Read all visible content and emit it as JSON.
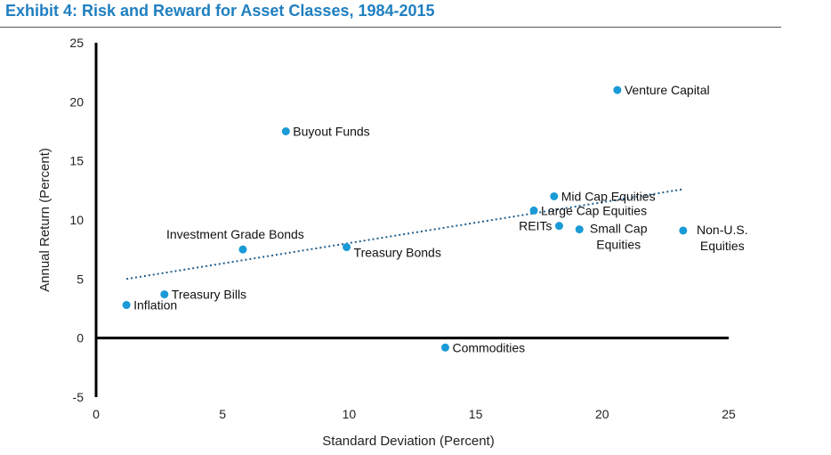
{
  "title": "Exhibit 4: Risk and Reward for Asset Classes, 1984-2015",
  "chart_data": {
    "type": "scatter",
    "title": "Exhibit 4: Risk and Reward for Asset Classes, 1984-2015",
    "xlabel": "Standard Deviation (Percent)",
    "ylabel": "Annual Return (Percent)",
    "xlim": [
      0,
      25
    ],
    "ylim": [
      -5,
      25
    ],
    "xticks": [
      0,
      5,
      10,
      15,
      20,
      25
    ],
    "yticks": [
      -5,
      0,
      5,
      10,
      15,
      20,
      25
    ],
    "grid": false,
    "legend": "none",
    "point_color": "#1a9ad6",
    "trend_color": "#1f5e8c",
    "trendline": {
      "x": [
        1.2,
        23.2
      ],
      "y": [
        5.0,
        12.6
      ]
    },
    "points": [
      {
        "label": [
          "Venture Capital"
        ],
        "x": 20.6,
        "y": 21.0,
        "anchor": "right"
      },
      {
        "label": [
          "Buyout Funds"
        ],
        "x": 7.5,
        "y": 17.5,
        "anchor": "right"
      },
      {
        "label": [
          "Mid Cap Equities"
        ],
        "x": 18.1,
        "y": 12.0,
        "anchor": "right"
      },
      {
        "label": [
          "Large Cap Equities"
        ],
        "x": 17.3,
        "y": 10.8,
        "anchor": "right"
      },
      {
        "label": [
          "REITs"
        ],
        "x": 18.3,
        "y": 9.5,
        "anchor": "left"
      },
      {
        "label": [
          "Small Cap",
          "Equities"
        ],
        "x": 19.1,
        "y": 9.2,
        "anchor": "right-center"
      },
      {
        "label": [
          "Non-U.S.",
          "Equities"
        ],
        "x": 23.2,
        "y": 9.1,
        "anchor": "right-center"
      },
      {
        "label": [
          "Investment Grade Bonds"
        ],
        "x": 5.8,
        "y": 7.5,
        "anchor": "above"
      },
      {
        "label": [
          "Treasury Bonds"
        ],
        "x": 9.9,
        "y": 7.7,
        "anchor": "right-below"
      },
      {
        "label": [
          "Treasury Bills"
        ],
        "x": 2.7,
        "y": 3.7,
        "anchor": "right"
      },
      {
        "label": [
          "Inflation"
        ],
        "x": 1.2,
        "y": 2.8,
        "anchor": "right"
      },
      {
        "label": [
          "Commodities"
        ],
        "x": 13.8,
        "y": -0.8,
        "anchor": "right"
      }
    ]
  }
}
